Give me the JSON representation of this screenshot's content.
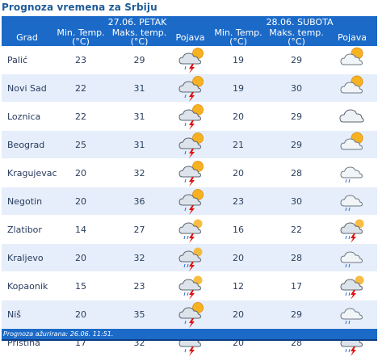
{
  "title": "Prognoza vremena za Srbiju",
  "header": {
    "day1": "27.06. PETAK",
    "day2": "28.06. SUBOTA",
    "city_col": "Grad",
    "min_line1": "Min. Temp.",
    "min_line2": "(°C)",
    "max_line1": "Maks. temp.",
    "max_line2": "(°C)",
    "pojava": "Pojava"
  },
  "rows": [
    {
      "city": "Palić",
      "d1_min": "23",
      "d1_max": "29",
      "d1_icon": "thunderstorm-sun-icon",
      "d2_min": "19",
      "d2_max": "29",
      "d2_icon": "partly-cloudy-icon"
    },
    {
      "city": "Novi Sad",
      "d1_min": "22",
      "d1_max": "31",
      "d1_icon": "thunderstorm-sun-icon",
      "d2_min": "19",
      "d2_max": "30",
      "d2_icon": "partly-cloudy-icon"
    },
    {
      "city": "Loznica",
      "d1_min": "22",
      "d1_max": "31",
      "d1_icon": "thunderstorm-sun-icon",
      "d2_min": "20",
      "d2_max": "29",
      "d2_icon": "cloudy-icon"
    },
    {
      "city": "Beograd",
      "d1_min": "25",
      "d1_max": "31",
      "d1_icon": "thunderstorm-sun-icon",
      "d2_min": "21",
      "d2_max": "29",
      "d2_icon": "partly-cloudy-icon"
    },
    {
      "city": "Kragujevac",
      "d1_min": "20",
      "d1_max": "32",
      "d1_icon": "thunderstorm-sun-icon",
      "d2_min": "20",
      "d2_max": "28",
      "d2_icon": "cloudy-rain-icon"
    },
    {
      "city": "Negotin",
      "d1_min": "20",
      "d1_max": "36",
      "d1_icon": "thunderstorm-sun-icon",
      "d2_min": "23",
      "d2_max": "30",
      "d2_icon": "cloudy-rain-icon"
    },
    {
      "city": "Zlatibor",
      "d1_min": "14",
      "d1_max": "27",
      "d1_icon": "thunderstorm-icon",
      "d2_min": "16",
      "d2_max": "22",
      "d2_icon": "thunderstorm-icon"
    },
    {
      "city": "Kraljevo",
      "d1_min": "20",
      "d1_max": "32",
      "d1_icon": "thunderstorm-icon",
      "d2_min": "20",
      "d2_max": "28",
      "d2_icon": "cloudy-rain-icon"
    },
    {
      "city": "Kopaonik",
      "d1_min": "15",
      "d1_max": "23",
      "d1_icon": "thunderstorm-icon",
      "d2_min": "12",
      "d2_max": "17",
      "d2_icon": "thunderstorm-icon"
    },
    {
      "city": "Niš",
      "d1_min": "20",
      "d1_max": "35",
      "d1_icon": "thunderstorm-sun-icon",
      "d2_min": "20",
      "d2_max": "29",
      "d2_icon": "cloudy-rain-icon"
    },
    {
      "city": "Priština",
      "d1_min": "17",
      "d1_max": "32",
      "d1_icon": "thunderstorm-sun-icon",
      "d2_min": "20",
      "d2_max": "28",
      "d2_icon": "thunderstorm-icon"
    }
  ],
  "footer": "Prognoza ažurirana:  26.06.  11:51.",
  "colors": {
    "header_bg": "#1b6ac8",
    "row_alt": "#e5eefa",
    "title": "#1f5c99"
  }
}
